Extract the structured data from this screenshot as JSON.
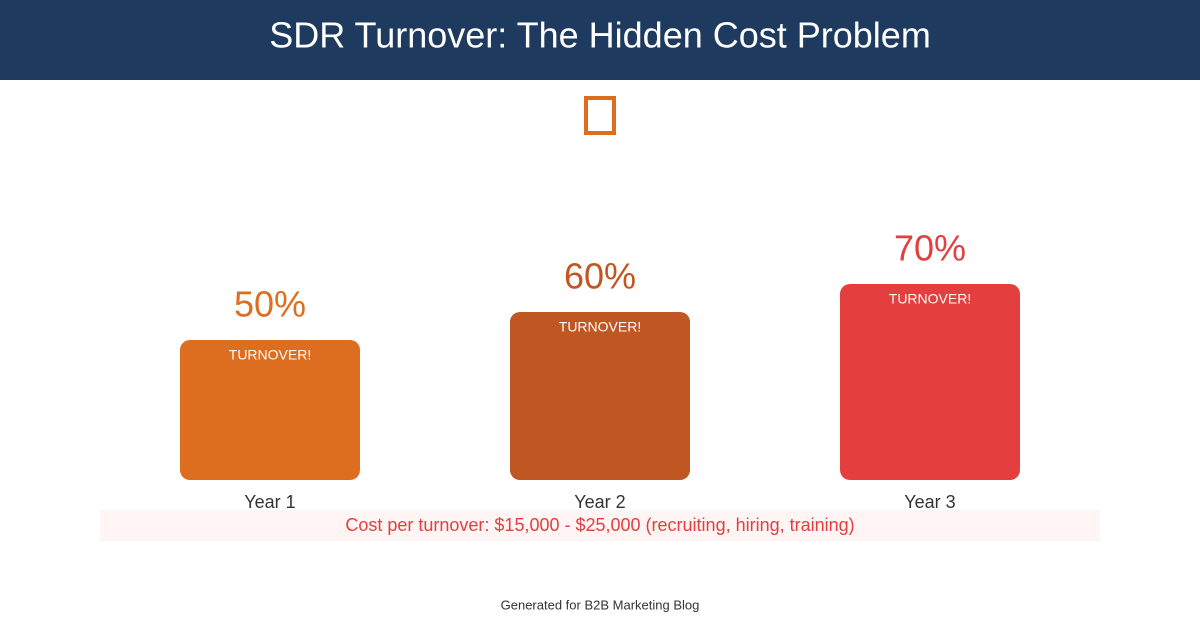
{
  "chart_data": {
    "type": "bar",
    "title": "SDR Turnover: The Hidden Cost Problem",
    "categories": [
      "Year 1",
      "Year 2",
      "Year 3"
    ],
    "values": [
      50,
      60,
      70
    ],
    "value_labels": [
      "50%",
      "60%",
      "70%"
    ],
    "bar_labels": [
      "TURNOVER!",
      "TURNOVER!",
      "TURNOVER!"
    ],
    "colors": [
      "#dd6e20",
      "#c05621",
      "#e53e3e"
    ],
    "note": "Cost per turnover: $15,000 - $25,000 (recruiting, hiring, training)",
    "footer": "Generated for B2B Marketing Blog"
  }
}
